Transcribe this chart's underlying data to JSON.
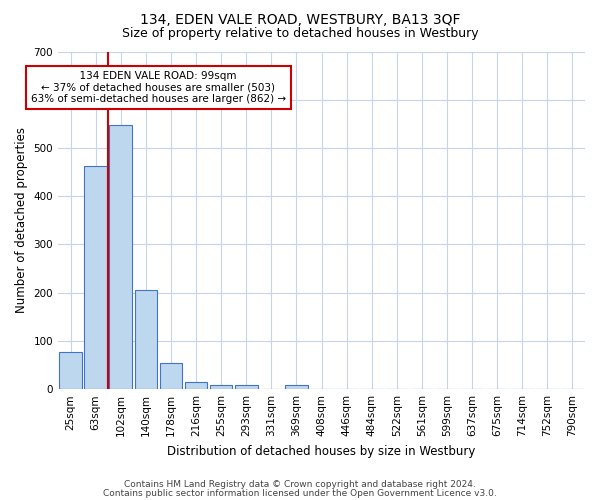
{
  "title": "134, EDEN VALE ROAD, WESTBURY, BA13 3QF",
  "subtitle": "Size of property relative to detached houses in Westbury",
  "xlabel": "Distribution of detached houses by size in Westbury",
  "ylabel": "Number of detached properties",
  "footnote1": "Contains HM Land Registry data © Crown copyright and database right 2024.",
  "footnote2": "Contains public sector information licensed under the Open Government Licence v3.0.",
  "bar_labels": [
    "25sqm",
    "63sqm",
    "102sqm",
    "140sqm",
    "178sqm",
    "216sqm",
    "255sqm",
    "293sqm",
    "331sqm",
    "369sqm",
    "408sqm",
    "446sqm",
    "484sqm",
    "522sqm",
    "561sqm",
    "599sqm",
    "637sqm",
    "675sqm",
    "714sqm",
    "752sqm",
    "790sqm"
  ],
  "bar_values": [
    78,
    462,
    548,
    205,
    55,
    14,
    8,
    8,
    0,
    8,
    0,
    0,
    0,
    0,
    0,
    0,
    0,
    0,
    0,
    0,
    0
  ],
  "bar_color": "#bdd7ee",
  "bar_edge_color": "#4472c4",
  "red_line_x": 1.5,
  "annotation_text": "  134 EDEN VALE ROAD: 99sqm  \n← 37% of detached houses are smaller (503)\n63% of semi-detached houses are larger (862) →",
  "annotation_box_color": "#ffffff",
  "annotation_box_edge": "#cc0000",
  "red_line_color": "#cc0000",
  "ylim": [
    0,
    700
  ],
  "yticks": [
    0,
    100,
    200,
    300,
    400,
    500,
    600,
    700
  ],
  "bg_color": "#ffffff",
  "grid_color": "#c8d4e8",
  "title_fontsize": 10,
  "subtitle_fontsize": 9,
  "axis_label_fontsize": 8.5,
  "tick_fontsize": 7.5,
  "annotation_fontsize": 7.5,
  "footnote_fontsize": 6.5
}
